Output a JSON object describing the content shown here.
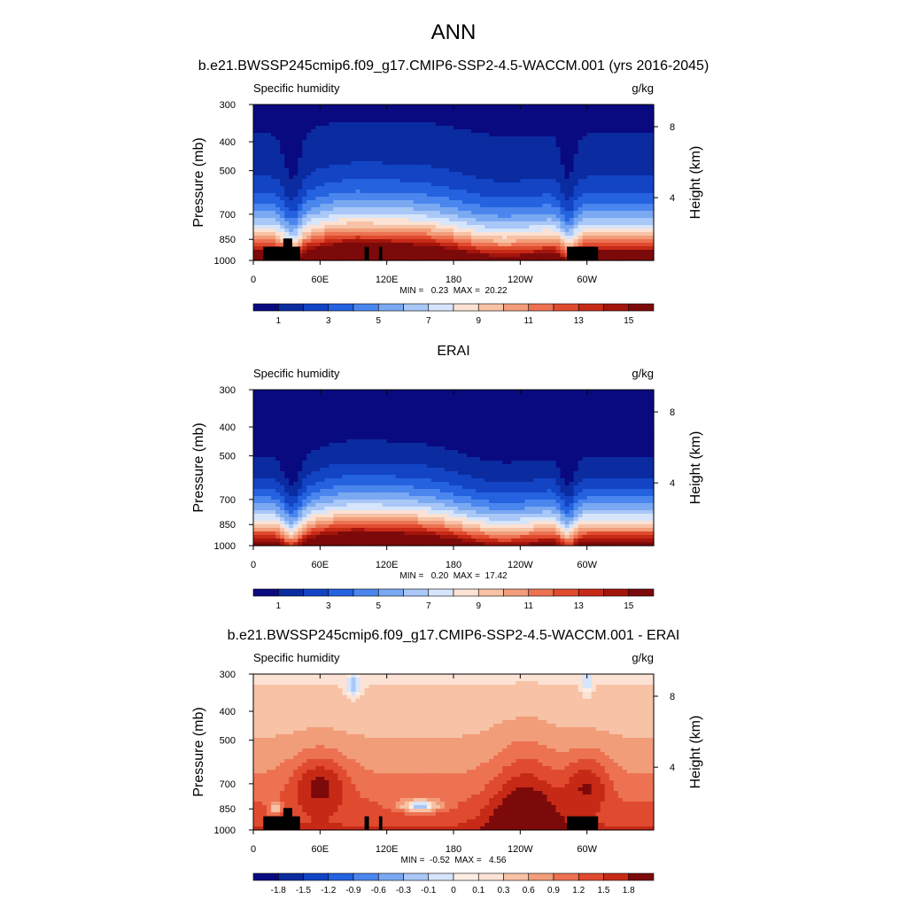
{
  "figure": {
    "title": "ANN"
  },
  "panels": [
    {
      "id": "model",
      "title": "b.e21.BWSSP245cmip6.f09_g17.CMIP6-SSP2-4.5-WACCM.001 (yrs 2016-2045)",
      "left_label": "Specific humidity",
      "right_label": "g/kg",
      "stats": "MIN =   0.23  MAX =  20.22",
      "colorbar_labels": [
        "1",
        "3",
        "5",
        "7",
        "9",
        "11",
        "13",
        "15"
      ]
    },
    {
      "id": "obs",
      "title": "ERAI",
      "left_label": "Specific humidity",
      "right_label": "g/kg",
      "stats": "MIN =   0.20  MAX =  17.42",
      "colorbar_labels": [
        "1",
        "3",
        "5",
        "7",
        "9",
        "11",
        "13",
        "15"
      ]
    },
    {
      "id": "diff",
      "title": "b.e21.BWSSP245cmip6.f09_g17.CMIP6-SSP2-4.5-WACCM.001 - ERAI",
      "left_label": "Specific humidity",
      "right_label": "g/kg",
      "stats": "MIN =  -0.52  MAX =   4.56",
      "colorbar_labels": [
        "-1.8",
        "-1.5",
        "-1.2",
        "-0.9",
        "-0.6",
        "-0.3",
        "-0.1",
        "0",
        "0.1",
        "0.3",
        "0.6",
        "0.9",
        "1.2",
        "1.5",
        "1.8"
      ]
    }
  ],
  "axes": {
    "ylabel": "Pressure (mb)",
    "ylabel_right": "Height (km)",
    "pressure_ticks": [
      "300",
      "400",
      "500",
      "700",
      "850",
      "1000"
    ],
    "height_ticks": [
      "8",
      "4"
    ],
    "lon_ticks": [
      "0",
      "60E",
      "120E",
      "180",
      "120W",
      "60W"
    ]
  },
  "colors": {
    "full_field": [
      "#0a0a80",
      "#0b2ba0",
      "#1244c4",
      "#2462df",
      "#4a86ee",
      "#7aa9f2",
      "#a9c7f7",
      "#d6e5fb",
      "#fbe2d4",
      "#f7c2a5",
      "#f29d7a",
      "#ec7252",
      "#e04b2f",
      "#c62a17",
      "#a3150b",
      "#7d0a0a"
    ],
    "difference": [
      "#0a0a80",
      "#0b2ba0",
      "#1244c4",
      "#2462df",
      "#4a86ee",
      "#7aa9f2",
      "#a9c7f7",
      "#d6e5fb",
      "#fdeee3",
      "#fbe2d4",
      "#f7c2a5",
      "#f29d7a",
      "#ec7252",
      "#e04b2f",
      "#c62a17",
      "#7d0a0a"
    ],
    "land": "#000000"
  },
  "chart_data": [
    {
      "type": "heatmap",
      "title": "b.e21.BWSSP245cmip6.f09_g17.CMIP6-SSP2-4.5-WACCM.001 (yrs 2016-2045)",
      "variable": "Specific humidity",
      "units": "g/kg",
      "x": {
        "label": "",
        "ticks": [
          "0",
          "60E",
          "120E",
          "180",
          "120W",
          "60W"
        ],
        "range_deg": [
          0,
          360
        ]
      },
      "y": {
        "label": "Pressure (mb)",
        "ticks": [
          300,
          400,
          500,
          700,
          850,
          1000
        ],
        "range": [
          300,
          1000
        ],
        "scale": "log",
        "inverted": true
      },
      "y_right": {
        "label": "Height (km)",
        "ticks": [
          8,
          4
        ]
      },
      "levels": [
        1,
        2,
        3,
        4,
        5,
        6,
        7,
        8,
        9,
        10,
        11,
        12,
        13,
        14,
        15
      ],
      "min": 0.23,
      "max": 20.22
    },
    {
      "type": "heatmap",
      "title": "ERAI",
      "variable": "Specific humidity",
      "units": "g/kg",
      "x": {
        "label": "",
        "ticks": [
          "0",
          "60E",
          "120E",
          "180",
          "120W",
          "60W"
        ],
        "range_deg": [
          0,
          360
        ]
      },
      "y": {
        "label": "Pressure (mb)",
        "ticks": [
          300,
          400,
          500,
          700,
          850,
          1000
        ],
        "range": [
          300,
          1000
        ],
        "scale": "log",
        "inverted": true
      },
      "y_right": {
        "label": "Height (km)",
        "ticks": [
          8,
          4
        ]
      },
      "levels": [
        1,
        2,
        3,
        4,
        5,
        6,
        7,
        8,
        9,
        10,
        11,
        12,
        13,
        14,
        15
      ],
      "min": 0.2,
      "max": 17.42
    },
    {
      "type": "heatmap",
      "title": "b.e21.BWSSP245cmip6.f09_g17.CMIP6-SSP2-4.5-WACCM.001 - ERAI",
      "variable": "Specific humidity",
      "units": "g/kg",
      "x": {
        "label": "",
        "ticks": [
          "0",
          "60E",
          "120E",
          "180",
          "120W",
          "60W"
        ],
        "range_deg": [
          0,
          360
        ]
      },
      "y": {
        "label": "Pressure (mb)",
        "ticks": [
          300,
          400,
          500,
          700,
          850,
          1000
        ],
        "range": [
          300,
          1000
        ],
        "scale": "log",
        "inverted": true
      },
      "y_right": {
        "label": "Height (km)",
        "ticks": [
          8,
          4
        ]
      },
      "levels": [
        -1.8,
        -1.5,
        -1.2,
        -0.9,
        -0.6,
        -0.3,
        -0.1,
        0,
        0.1,
        0.3,
        0.6,
        0.9,
        1.2,
        1.5,
        1.8
      ],
      "min": -0.52,
      "max": 4.56
    }
  ]
}
